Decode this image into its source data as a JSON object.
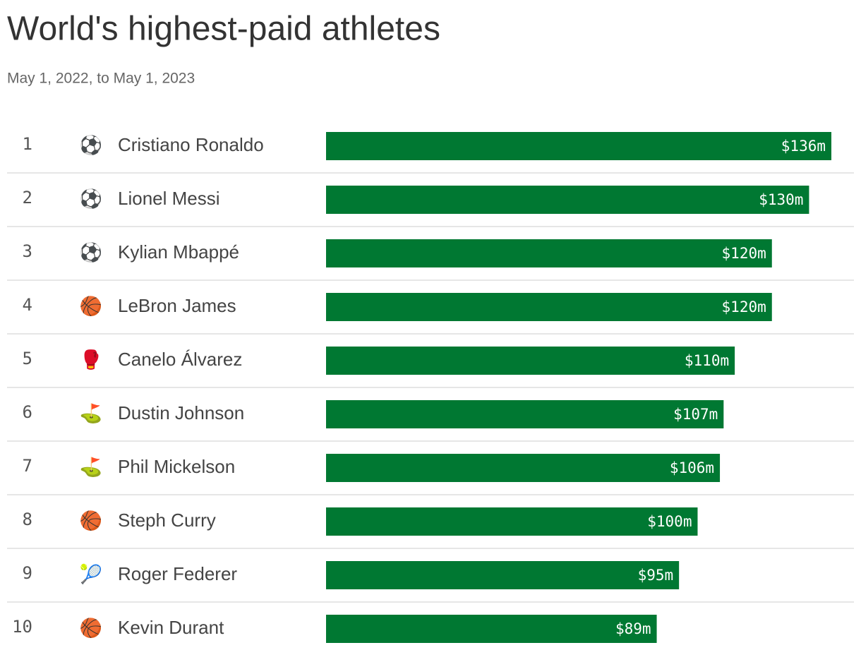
{
  "chart_data": {
    "type": "bar",
    "orientation": "horizontal",
    "title": "World's highest-paid athletes",
    "subtitle": "May 1, 2022, to May 1, 2023",
    "ranks": [
      1,
      2,
      3,
      4,
      5,
      6,
      7,
      8,
      9,
      10
    ],
    "icons": [
      "⚽",
      "⚽",
      "⚽",
      "🏀",
      "🥊",
      "⛳",
      "⛳",
      "🏀",
      "🎾",
      "🏀"
    ],
    "categories": [
      "Cristiano Ronaldo",
      "Lionel Messi",
      "Kylian Mbappé",
      "LeBron James",
      "Canelo Álvarez",
      "Dustin Johnson",
      "Phil Mickelson",
      "Steph Curry",
      "Roger Federer",
      "Kevin Durant"
    ],
    "values": [
      136,
      130,
      120,
      120,
      110,
      107,
      106,
      100,
      95,
      89
    ],
    "value_labels": [
      "$136m",
      "$130m",
      "$120m",
      "$120m",
      "$110m",
      "$107m",
      "$106m",
      "$100m",
      "$95m",
      "$89m"
    ],
    "color": "#007832"
  }
}
